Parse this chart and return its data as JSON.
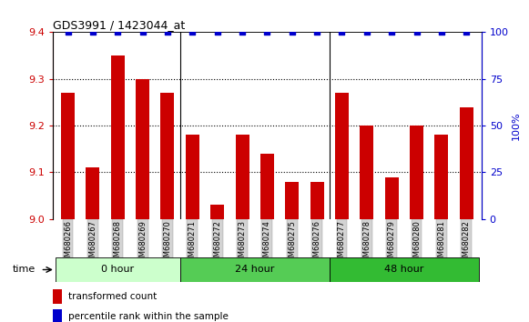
{
  "title": "GDS3991 / 1423044_at",
  "samples": [
    "GSM680266",
    "GSM680267",
    "GSM680268",
    "GSM680269",
    "GSM680270",
    "GSM680271",
    "GSM680272",
    "GSM680273",
    "GSM680274",
    "GSM680275",
    "GSM680276",
    "GSM680277",
    "GSM680278",
    "GSM680279",
    "GSM680280",
    "GSM680281",
    "GSM680282"
  ],
  "bar_values": [
    9.27,
    9.11,
    9.35,
    9.3,
    9.27,
    9.18,
    9.03,
    9.18,
    9.14,
    9.08,
    9.08,
    9.27,
    9.2,
    9.09,
    9.2,
    9.18,
    9.24
  ],
  "percentile_values": [
    100,
    100,
    100,
    100,
    100,
    100,
    100,
    100,
    100,
    100,
    100,
    100,
    100,
    100,
    100,
    100,
    100
  ],
  "bar_color": "#cc0000",
  "percentile_color": "#0000cc",
  "ylim_left": [
    9.0,
    9.4
  ],
  "ylim_right": [
    0,
    100
  ],
  "yticks_left": [
    9.0,
    9.1,
    9.2,
    9.3,
    9.4
  ],
  "yticks_right": [
    0,
    25,
    50,
    75,
    100
  ],
  "groups": [
    {
      "label": "0 hour",
      "start": 0,
      "end": 4,
      "color": "#ccffcc"
    },
    {
      "label": "24 hour",
      "start": 5,
      "end": 10,
      "color": "#55cc55"
    },
    {
      "label": "48 hour",
      "start": 11,
      "end": 16,
      "color": "#33bb33"
    }
  ],
  "group_dividers": [
    4.5,
    10.5
  ],
  "bar_width": 0.55,
  "legend_bar_label": "transformed count",
  "legend_perc_label": "percentile rank within the sample",
  "time_label": "time"
}
